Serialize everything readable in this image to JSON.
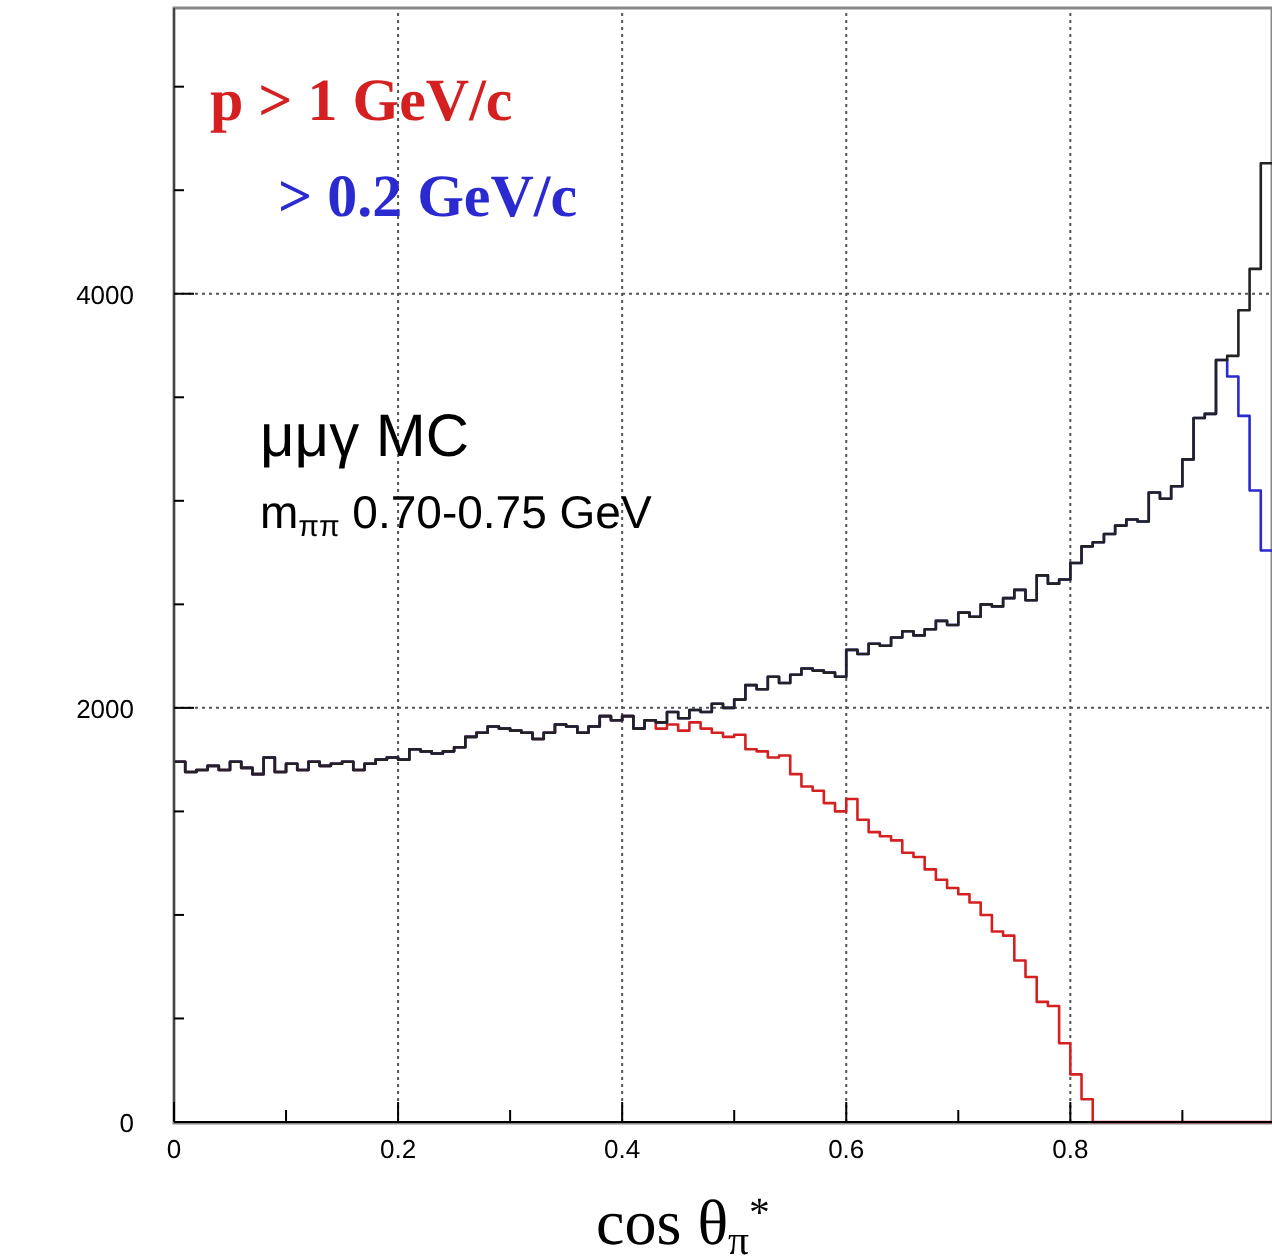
{
  "chart_data": {
    "type": "histogram",
    "xlabel": "cos θ$_{π}$$^{*}$",
    "annotations": [
      "μμγ MC",
      "m$_{ππ}$ 0.70-0.75 GeV"
    ],
    "bins": [
      0,
      0.01,
      0.02,
      0.03,
      0.04,
      0.05,
      0.06,
      0.07,
      0.08,
      0.09,
      0.1,
      0.11,
      0.12,
      0.13,
      0.14,
      0.15,
      0.16,
      0.17,
      0.18,
      0.19,
      0.2,
      0.21,
      0.22,
      0.23,
      0.24,
      0.25,
      0.26,
      0.27,
      0.28,
      0.29,
      0.3,
      0.31,
      0.32,
      0.33,
      0.34,
      0.35,
      0.36,
      0.37,
      0.38,
      0.39,
      0.4,
      0.41,
      0.42,
      0.43,
      0.44,
      0.45,
      0.46,
      0.47,
      0.48,
      0.49,
      0.5,
      0.51,
      0.52,
      0.53,
      0.54,
      0.55,
      0.56,
      0.57,
      0.58,
      0.59,
      0.6,
      0.61,
      0.62,
      0.63,
      0.64,
      0.65,
      0.66,
      0.67,
      0.68,
      0.69,
      0.7,
      0.71,
      0.72,
      0.73,
      0.74,
      0.75,
      0.76,
      0.77,
      0.78,
      0.79,
      0.8,
      0.81,
      0.82,
      0.83,
      0.84,
      0.85,
      0.86,
      0.87,
      0.88,
      0.89,
      0.9,
      0.91,
      0.92,
      0.93,
      0.94,
      0.95,
      0.96,
      0.97,
      0.98
    ],
    "series": [
      {
        "color": "#222222",
        "values": [
          1740,
          1690,
          1700,
          1720,
          1700,
          1740,
          1710,
          1680,
          1760,
          1690,
          1730,
          1700,
          1740,
          1720,
          1730,
          1740,
          1700,
          1730,
          1750,
          1760,
          1750,
          1800,
          1790,
          1780,
          1790,
          1810,
          1860,
          1880,
          1910,
          1900,
          1890,
          1880,
          1850,
          1880,
          1920,
          1910,
          1880,
          1910,
          1960,
          1940,
          1960,
          1900,
          1940,
          1930,
          1980,
          1950,
          1990,
          1980,
          2020,
          2000,
          2040,
          2110,
          2090,
          2150,
          2120,
          2160,
          2190,
          2180,
          2170,
          2150,
          2280,
          2260,
          2310,
          2300,
          2340,
          2370,
          2350,
          2380,
          2420,
          2400,
          2460,
          2440,
          2500,
          2490,
          2530,
          2570,
          2520,
          2640,
          2600,
          2620,
          2700,
          2780,
          2800,
          2840,
          2880,
          2910,
          2900,
          3040,
          3010,
          3070,
          3200,
          3400,
          3420,
          3680,
          3700,
          3920,
          4120,
          4630
        ]
      },
      {
        "name": "> 0.2 GeV/c",
        "color": "#2a2ad0",
        "values": [
          1740,
          1690,
          1700,
          1720,
          1700,
          1740,
          1710,
          1680,
          1760,
          1690,
          1730,
          1700,
          1740,
          1720,
          1730,
          1740,
          1700,
          1730,
          1750,
          1760,
          1750,
          1800,
          1790,
          1780,
          1790,
          1810,
          1860,
          1880,
          1910,
          1900,
          1890,
          1880,
          1850,
          1880,
          1920,
          1910,
          1880,
          1910,
          1960,
          1940,
          1960,
          1900,
          1940,
          1930,
          1980,
          1950,
          1990,
          1980,
          2020,
          2000,
          2040,
          2110,
          2090,
          2150,
          2120,
          2160,
          2190,
          2180,
          2170,
          2150,
          2280,
          2260,
          2310,
          2300,
          2340,
          2370,
          2350,
          2380,
          2420,
          2400,
          2460,
          2440,
          2500,
          2490,
          2530,
          2570,
          2520,
          2640,
          2600,
          2620,
          2700,
          2780,
          2800,
          2840,
          2880,
          2910,
          2900,
          3040,
          3010,
          3070,
          3200,
          3400,
          3420,
          3680,
          3600,
          3410,
          3050,
          2760
        ]
      },
      {
        "name": "p > 1 GeV/c",
        "color": "#d42020",
        "values": [
          1740,
          1690,
          1700,
          1720,
          1700,
          1740,
          1710,
          1680,
          1760,
          1690,
          1730,
          1700,
          1740,
          1720,
          1730,
          1740,
          1700,
          1730,
          1750,
          1760,
          1750,
          1800,
          1790,
          1780,
          1790,
          1810,
          1860,
          1880,
          1910,
          1900,
          1890,
          1880,
          1850,
          1880,
          1920,
          1910,
          1880,
          1910,
          1960,
          1940,
          1960,
          1900,
          1940,
          1900,
          1920,
          1890,
          1930,
          1900,
          1880,
          1860,
          1870,
          1800,
          1790,
          1760,
          1770,
          1680,
          1620,
          1600,
          1540,
          1500,
          1560,
          1460,
          1400,
          1380,
          1360,
          1300,
          1280,
          1220,
          1170,
          1130,
          1100,
          1060,
          1000,
          920,
          900,
          780,
          700,
          580,
          560,
          380,
          230,
          110,
          0,
          0,
          0,
          0,
          0,
          0,
          0,
          0,
          0,
          0,
          0,
          0,
          0,
          0,
          0,
          0
        ]
      }
    ],
    "xlim": [
      0,
      0.98
    ],
    "xticks": [
      0,
      {
        "value": 0.1,
        "label": null
      },
      0.2,
      {
        "value": 0.3,
        "label": null
      },
      0.4,
      {
        "value": 0.5,
        "label": null
      },
      0.6,
      {
        "value": 0.7,
        "label": null
      },
      0.8,
      {
        "value": 0.9,
        "label": null
      }
    ],
    "ylim": [
      0,
      5380
    ],
    "yticks": [
      0,
      {
        "value": 500,
        "label": null
      },
      {
        "value": 1000,
        "label": null
      },
      {
        "value": 1500,
        "label": null
      },
      2000,
      {
        "value": 2500,
        "label": null
      },
      {
        "value": 3000,
        "label": null
      },
      {
        "value": 3500,
        "label": null
      },
      4000,
      {
        "value": 4500,
        "label": null
      },
      {
        "value": 5000,
        "label": null
      }
    ],
    "grid": true,
    "legend": "top left"
  }
}
